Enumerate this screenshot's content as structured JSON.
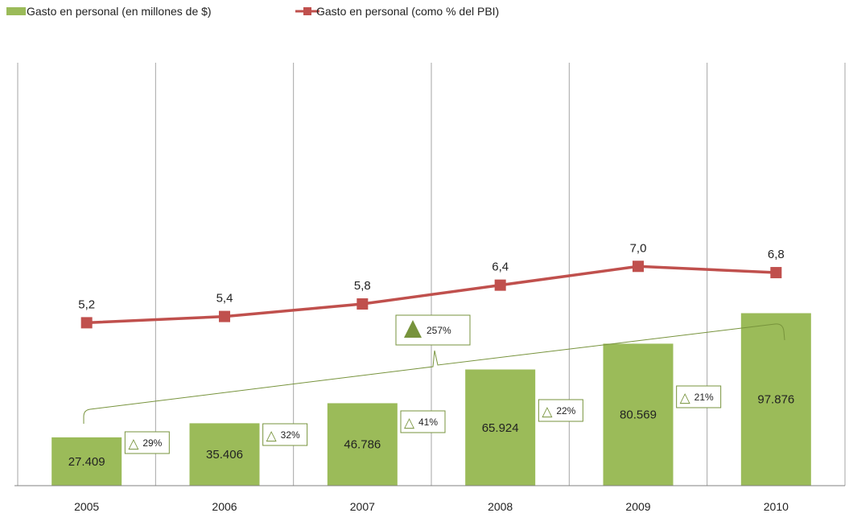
{
  "chart_data": {
    "type": "bar",
    "categories": [
      "2005",
      "2006",
      "2007",
      "2008",
      "2009",
      "2010"
    ],
    "series": [
      {
        "name": "Gasto en personal (en millones de $)",
        "kind": "bar",
        "values": [
          27409,
          35406,
          46786,
          65924,
          80569,
          97876
        ],
        "value_labels": [
          "27.409",
          "35.406",
          "46.786",
          "65.924",
          "80.569",
          "97.876"
        ],
        "color": "#9BBB59"
      },
      {
        "name": "Gasto en personal (como % del PBI)",
        "kind": "line",
        "values": [
          5.2,
          5.4,
          5.8,
          6.4,
          7.0,
          6.8
        ],
        "value_labels": [
          "5,2",
          "5,4",
          "5,8",
          "6,4",
          "7,0",
          "6,8"
        ],
        "color": "#C0504D"
      }
    ],
    "annotations": {
      "growth_symbol": "△",
      "growth_labels": [
        "29%",
        "32%",
        "41%",
        "22%",
        "21%"
      ],
      "growth_color": "#77933C",
      "total_growth_label": "257%",
      "total_growth_symbol": "▲"
    },
    "legend": "top-left",
    "grid": {
      "vertical": true,
      "horizontal": false
    }
  }
}
